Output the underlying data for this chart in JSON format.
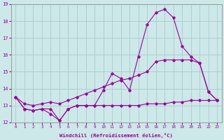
{
  "background_color": "#cce8e8",
  "grid_color": "#aacccc",
  "line_color": "#990099",
  "xlabel": "Windchill (Refroidissement éolien,°C)",
  "x_hours": [
    0,
    1,
    2,
    3,
    4,
    5,
    6,
    7,
    8,
    9,
    10,
    11,
    12,
    13,
    14,
    15,
    16,
    17,
    18,
    19,
    20,
    21,
    22,
    23
  ],
  "series1": [
    13.5,
    12.8,
    12.7,
    12.8,
    12.8,
    12.1,
    12.8,
    13.0,
    13.0,
    13.0,
    13.9,
    14.9,
    14.6,
    13.9,
    15.9,
    17.8,
    18.5,
    18.7,
    18.2,
    16.5,
    15.9,
    15.5,
    13.8,
    13.3
  ],
  "series2": [
    13.5,
    13.1,
    13.0,
    13.1,
    13.2,
    13.1,
    13.3,
    13.5,
    13.7,
    13.9,
    14.1,
    14.3,
    14.5,
    14.6,
    14.8,
    15.0,
    15.6,
    15.7,
    15.7,
    15.7,
    15.7,
    15.5,
    13.8,
    13.3
  ],
  "series3": [
    13.5,
    12.8,
    12.7,
    12.8,
    12.5,
    12.1,
    12.8,
    13.0,
    13.0,
    13.0,
    13.0,
    13.0,
    13.0,
    13.0,
    13.0,
    13.1,
    13.1,
    13.1,
    13.2,
    13.2,
    13.3,
    13.3,
    13.3,
    13.3
  ],
  "ylim": [
    12,
    19
  ],
  "xlim_min": -0.5,
  "xlim_max": 23.5,
  "yticks": [
    12,
    13,
    14,
    15,
    16,
    17,
    18,
    19
  ],
  "xticks": [
    0,
    1,
    2,
    3,
    4,
    5,
    6,
    7,
    8,
    9,
    10,
    11,
    12,
    13,
    14,
    15,
    16,
    17,
    18,
    19,
    20,
    21,
    22,
    23
  ]
}
